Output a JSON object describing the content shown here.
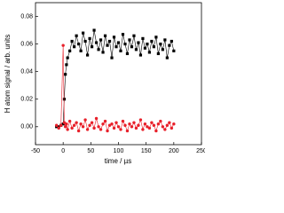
{
  "chart_data": {
    "type": "line",
    "xlabel": "time / µs",
    "ylabel": "H atom signal / arb. units",
    "x": [
      -12,
      -8,
      -4,
      0,
      2,
      4,
      6,
      8,
      12,
      16,
      20,
      24,
      28,
      32,
      36,
      40,
      44,
      48,
      52,
      56,
      60,
      64,
      68,
      72,
      76,
      80,
      84,
      88,
      92,
      96,
      100,
      104,
      108,
      112,
      116,
      120,
      124,
      128,
      132,
      136,
      140,
      144,
      148,
      152,
      156,
      160,
      164,
      168,
      172,
      176,
      180,
      184,
      188,
      192,
      196,
      200
    ],
    "series": [
      {
        "color": "#000000",
        "marker": "square",
        "values": [
          0.0,
          0.0,
          0.001,
          0.002,
          0.02,
          0.038,
          0.045,
          0.05,
          0.055,
          0.062,
          0.058,
          0.066,
          0.06,
          0.055,
          0.068,
          0.062,
          0.052,
          0.064,
          0.058,
          0.07,
          0.061,
          0.056,
          0.063,
          0.054,
          0.066,
          0.059,
          0.062,
          0.05,
          0.065,
          0.058,
          0.061,
          0.055,
          0.067,
          0.06,
          0.053,
          0.063,
          0.058,
          0.066,
          0.056,
          0.061,
          0.052,
          0.064,
          0.057,
          0.06,
          0.054,
          0.062,
          0.058,
          0.065,
          0.053,
          0.06,
          0.056,
          0.063,
          0.05,
          0.059,
          0.062,
          0.055
        ]
      },
      {
        "color": "#e8202a",
        "marker": "circle",
        "values": [
          0.001,
          -0.001,
          0.001,
          0.059,
          0.003,
          0.0,
          0.002,
          -0.002,
          0.004,
          -0.001,
          0.001,
          0.003,
          -0.003,
          0.002,
          0.0,
          0.005,
          -0.002,
          0.001,
          0.003,
          -0.001,
          0.006,
          0.0,
          -0.002,
          0.002,
          0.004,
          -0.003,
          0.001,
          0.002,
          -0.001,
          0.003,
          0.0,
          -0.002,
          0.004,
          0.001,
          -0.003,
          0.002,
          0.0,
          0.003,
          -0.001,
          0.001,
          0.005,
          -0.002,
          0.002,
          0.0,
          -0.001,
          0.003,
          0.001,
          -0.003,
          0.002,
          0.004,
          0.0,
          -0.002,
          0.001,
          0.003,
          -0.001,
          0.002
        ]
      }
    ],
    "xlim": [
      -50,
      250
    ],
    "ylim": [
      -0.013,
      0.09
    ],
    "xticks": [
      -50,
      0,
      50,
      100,
      150,
      200,
      250
    ],
    "yticks": [
      {
        "value": 0,
        "label": "0.00"
      },
      {
        "value": 0.02,
        "label": "0.02"
      },
      {
        "value": 0.04,
        "label": "0.04"
      },
      {
        "value": 0.06,
        "label": "0.06"
      },
      {
        "value": 0.08,
        "label": "0.08"
      }
    ]
  }
}
